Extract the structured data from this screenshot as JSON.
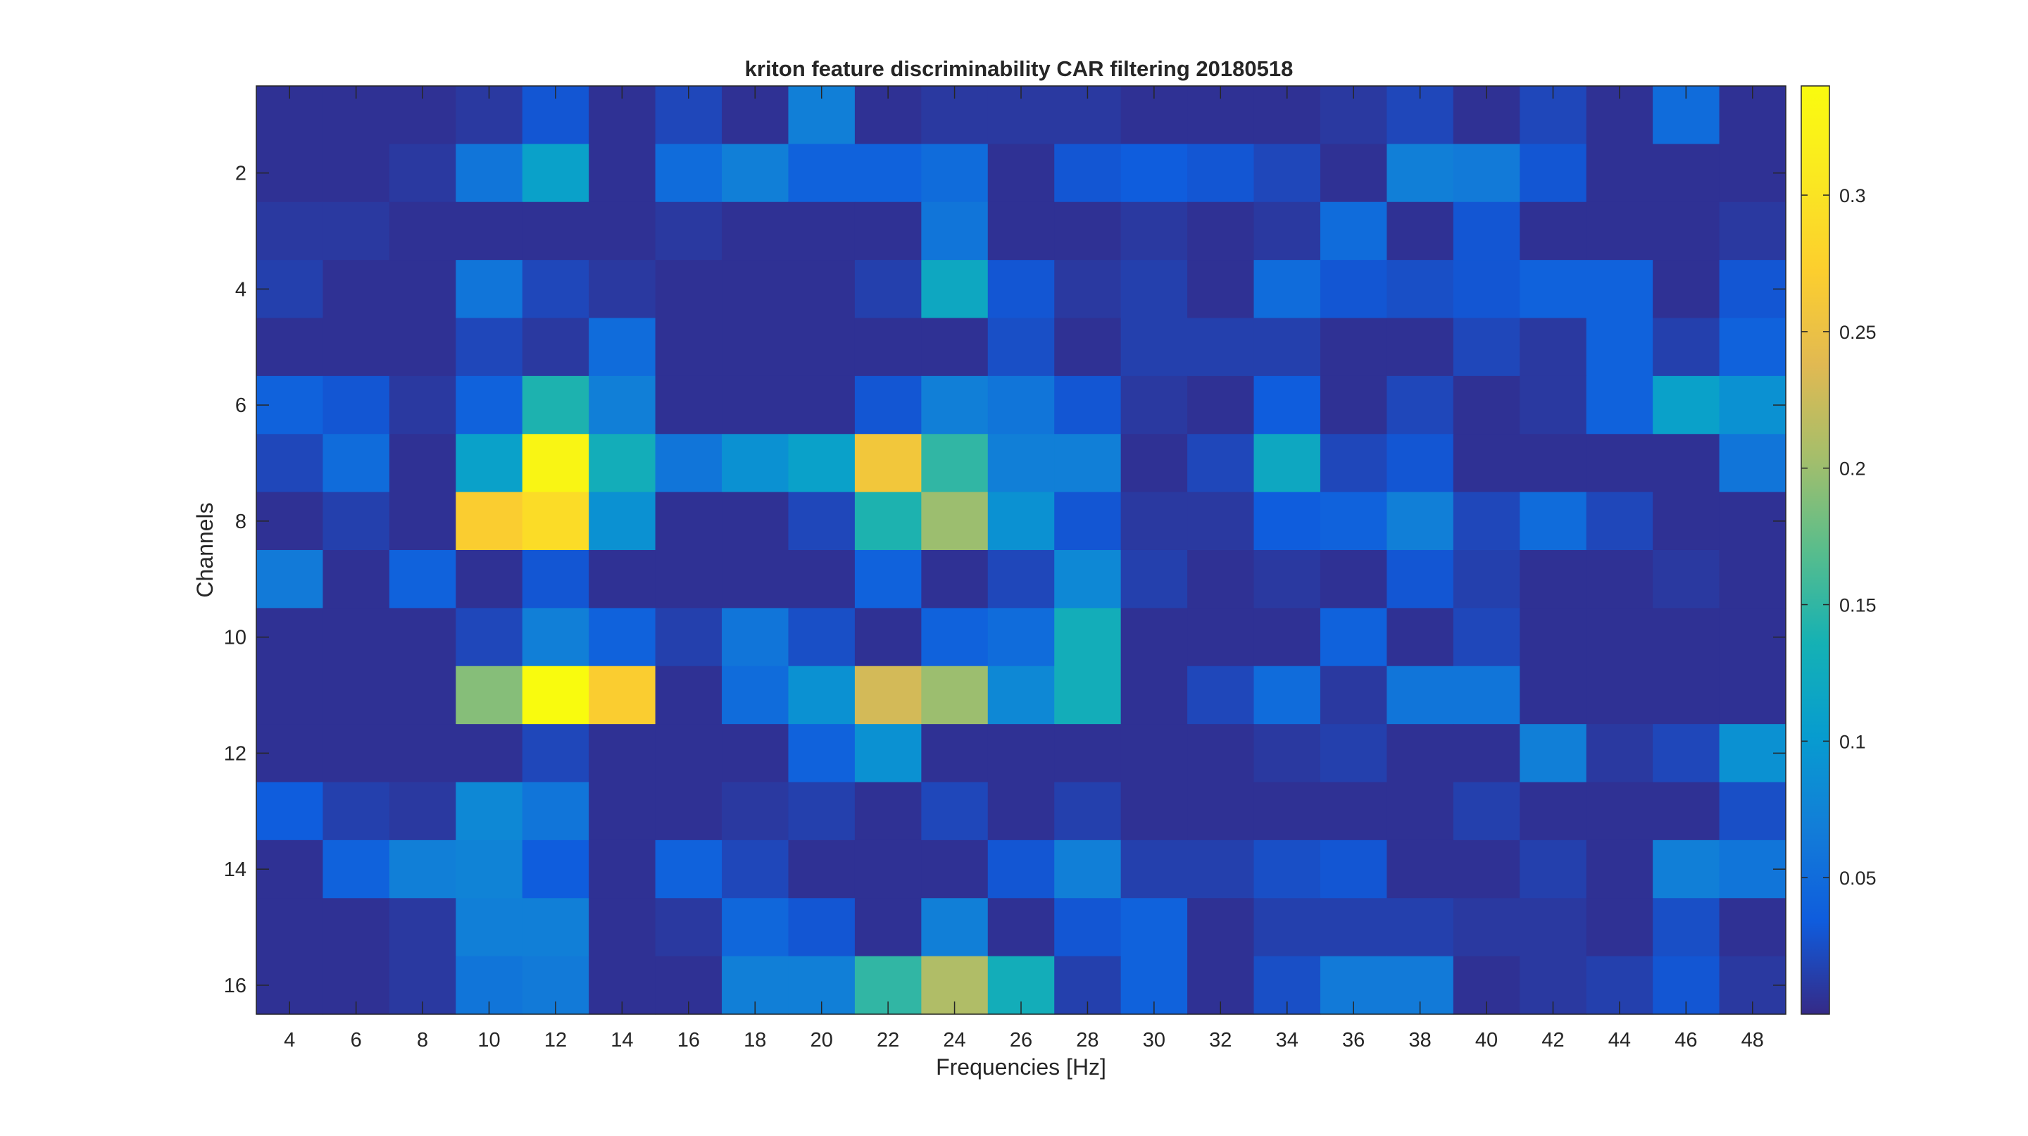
{
  "chart_data": {
    "type": "heatmap",
    "title": "kriton feature discriminability CAR filtering 20180518",
    "xlabel": "Frequencies [Hz]",
    "ylabel": "Channels",
    "x": [
      4,
      6,
      8,
      10,
      12,
      14,
      16,
      18,
      20,
      22,
      24,
      26,
      28,
      30,
      32,
      34,
      36,
      38,
      40,
      42,
      44,
      46,
      48
    ],
    "y": [
      1,
      2,
      3,
      4,
      5,
      6,
      7,
      8,
      9,
      10,
      11,
      12,
      13,
      14,
      15,
      16
    ],
    "x_ticks": [
      "4",
      "6",
      "8",
      "10",
      "12",
      "14",
      "16",
      "18",
      "20",
      "22",
      "24",
      "26",
      "28",
      "30",
      "32",
      "34",
      "36",
      "38",
      "40",
      "42",
      "44",
      "46",
      "48"
    ],
    "y_ticks": [
      "2",
      "4",
      "6",
      "8",
      "10",
      "12",
      "14",
      "16"
    ],
    "y_tick_values": [
      2,
      4,
      6,
      8,
      10,
      12,
      14,
      16
    ],
    "colorbar": {
      "range": [
        0.0,
        0.34
      ],
      "ticks": [
        "0.05",
        "0.1",
        "0.15",
        "0.2",
        "0.25",
        "0.3"
      ],
      "tick_values": [
        0.05,
        0.1,
        0.15,
        0.2,
        0.25,
        0.3
      ],
      "colormap": "parula"
    },
    "values": [
      [
        0.005,
        0.005,
        0.005,
        0.01,
        0.03,
        0.005,
        0.02,
        0.005,
        0.07,
        0.005,
        0.01,
        0.01,
        0.01,
        0.005,
        0.005,
        0.005,
        0.01,
        0.02,
        0.005,
        0.02,
        0.005,
        0.05,
        0.005
      ],
      [
        0.005,
        0.005,
        0.01,
        0.06,
        0.11,
        0.005,
        0.05,
        0.07,
        0.04,
        0.04,
        0.05,
        0.005,
        0.03,
        0.035,
        0.03,
        0.02,
        0.005,
        0.07,
        0.065,
        0.03,
        0.005,
        0.005,
        0.005
      ],
      [
        0.01,
        0.01,
        0.005,
        0.005,
        0.005,
        0.005,
        0.01,
        0.005,
        0.005,
        0.005,
        0.06,
        0.005,
        0.005,
        0.01,
        0.005,
        0.01,
        0.05,
        0.005,
        0.03,
        0.005,
        0.005,
        0.005,
        0.01
      ],
      [
        0.015,
        0.005,
        0.005,
        0.06,
        0.02,
        0.01,
        0.005,
        0.005,
        0.005,
        0.015,
        0.12,
        0.03,
        0.01,
        0.015,
        0.005,
        0.05,
        0.03,
        0.025,
        0.03,
        0.04,
        0.04,
        0.005,
        0.03
      ],
      [
        0.005,
        0.005,
        0.005,
        0.02,
        0.01,
        0.05,
        0.005,
        0.005,
        0.005,
        0.005,
        0.005,
        0.025,
        0.005,
        0.015,
        0.015,
        0.015,
        0.005,
        0.005,
        0.02,
        0.01,
        0.04,
        0.015,
        0.04
      ],
      [
        0.04,
        0.03,
        0.01,
        0.04,
        0.14,
        0.07,
        0.005,
        0.005,
        0.005,
        0.03,
        0.07,
        0.06,
        0.03,
        0.01,
        0.005,
        0.035,
        0.005,
        0.02,
        0.005,
        0.01,
        0.04,
        0.11,
        0.09
      ],
      [
        0.02,
        0.05,
        0.005,
        0.11,
        0.33,
        0.13,
        0.06,
        0.09,
        0.11,
        0.26,
        0.15,
        0.07,
        0.07,
        0.005,
        0.02,
        0.12,
        0.02,
        0.03,
        0.005,
        0.005,
        0.005,
        0.005,
        0.06
      ],
      [
        0.005,
        0.015,
        0.005,
        0.27,
        0.29,
        0.09,
        0.005,
        0.005,
        0.02,
        0.14,
        0.2,
        0.09,
        0.03,
        0.01,
        0.01,
        0.035,
        0.04,
        0.07,
        0.02,
        0.05,
        0.02,
        0.005,
        0.005
      ],
      [
        0.065,
        0.005,
        0.04,
        0.005,
        0.03,
        0.005,
        0.005,
        0.005,
        0.005,
        0.04,
        0.005,
        0.02,
        0.08,
        0.015,
        0.005,
        0.01,
        0.005,
        0.03,
        0.015,
        0.005,
        0.005,
        0.01,
        0.005
      ],
      [
        0.005,
        0.005,
        0.005,
        0.02,
        0.07,
        0.04,
        0.015,
        0.06,
        0.025,
        0.005,
        0.04,
        0.05,
        0.13,
        0.005,
        0.005,
        0.005,
        0.04,
        0.005,
        0.02,
        0.005,
        0.005,
        0.005,
        0.005
      ],
      [
        0.005,
        0.005,
        0.005,
        0.19,
        0.34,
        0.27,
        0.005,
        0.05,
        0.09,
        0.23,
        0.2,
        0.08,
        0.13,
        0.005,
        0.02,
        0.05,
        0.01,
        0.06,
        0.06,
        0.005,
        0.005,
        0.005,
        0.005
      ],
      [
        0.005,
        0.005,
        0.005,
        0.005,
        0.02,
        0.005,
        0.005,
        0.005,
        0.04,
        0.09,
        0.005,
        0.005,
        0.005,
        0.005,
        0.005,
        0.01,
        0.015,
        0.005,
        0.005,
        0.07,
        0.01,
        0.02,
        0.09
      ],
      [
        0.035,
        0.015,
        0.01,
        0.08,
        0.06,
        0.005,
        0.005,
        0.01,
        0.015,
        0.005,
        0.02,
        0.005,
        0.015,
        0.005,
        0.005,
        0.005,
        0.005,
        0.005,
        0.015,
        0.005,
        0.005,
        0.005,
        0.025
      ],
      [
        0.005,
        0.04,
        0.07,
        0.075,
        0.035,
        0.005,
        0.04,
        0.02,
        0.005,
        0.005,
        0.005,
        0.03,
        0.07,
        0.015,
        0.015,
        0.025,
        0.03,
        0.005,
        0.005,
        0.015,
        0.005,
        0.07,
        0.06
      ],
      [
        0.005,
        0.005,
        0.01,
        0.07,
        0.07,
        0.005,
        0.01,
        0.045,
        0.03,
        0.005,
        0.07,
        0.005,
        0.03,
        0.04,
        0.005,
        0.015,
        0.015,
        0.015,
        0.01,
        0.01,
        0.005,
        0.025,
        0.005
      ],
      [
        0.005,
        0.005,
        0.01,
        0.06,
        0.065,
        0.005,
        0.005,
        0.07,
        0.07,
        0.15,
        0.21,
        0.13,
        0.015,
        0.04,
        0.005,
        0.025,
        0.065,
        0.065,
        0.005,
        0.01,
        0.015,
        0.03,
        0.01
      ]
    ]
  }
}
